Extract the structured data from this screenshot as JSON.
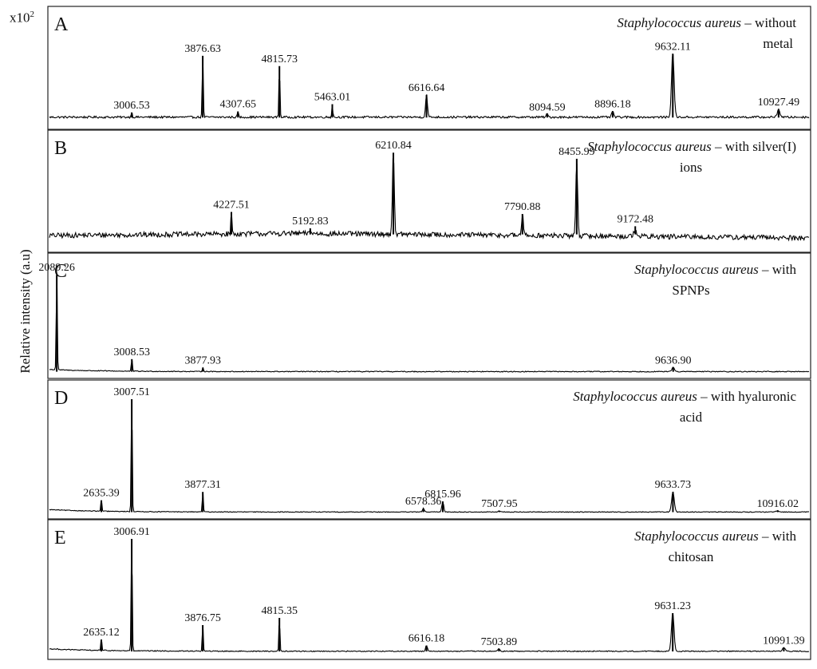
{
  "figure": {
    "ylabel": "Relative intensity (a.u)",
    "multiplier_base": "x10",
    "multiplier_exp": "2"
  },
  "chart_data": [
    {
      "type": "line",
      "panel": "A",
      "species": "Staphylococcus aureus",
      "condition_line1": " – without",
      "condition_line2": "metal",
      "xlim": [
        2000,
        11300
      ],
      "ylim": [
        0,
        1
      ],
      "base": 0.06,
      "noise": 0.02,
      "peaks": [
        {
          "mz": 3006.53,
          "h": 0.05,
          "label": "3006.53"
        },
        {
          "mz": 3876.63,
          "h": 0.6,
          "label": "3876.63"
        },
        {
          "mz": 4307.65,
          "h": 0.06,
          "label": "4307.65"
        },
        {
          "mz": 4815.73,
          "h": 0.5,
          "label": "4815.73"
        },
        {
          "mz": 5463.01,
          "h": 0.13,
          "label": "5463.01"
        },
        {
          "mz": 6616.64,
          "h": 0.22,
          "label": "6616.64"
        },
        {
          "mz": 8094.59,
          "h": 0.03,
          "label": "8094.59"
        },
        {
          "mz": 8896.18,
          "h": 0.06,
          "label": "8896.18"
        },
        {
          "mz": 9632.11,
          "h": 0.62,
          "label": "9632.11"
        },
        {
          "mz": 10927.49,
          "h": 0.08,
          "label": "10927.49"
        }
      ]
    },
    {
      "type": "line",
      "panel": "B",
      "species": "Staphylococcus aureus",
      "condition_line1": " – with silver(I)",
      "condition_line2": "ions",
      "xlim": [
        2000,
        11300
      ],
      "ylim": [
        0,
        1
      ],
      "base": 0.12,
      "noise": 0.05,
      "peaks": [
        {
          "mz": 4227.51,
          "h": 0.22,
          "label": "4227.51"
        },
        {
          "mz": 5192.83,
          "h": 0.06,
          "label": "5192.83"
        },
        {
          "mz": 6210.84,
          "h": 0.8,
          "label": "6210.84"
        },
        {
          "mz": 7790.88,
          "h": 0.2,
          "label": "7790.88"
        },
        {
          "mz": 8455.99,
          "h": 0.74,
          "label": "8455.99"
        },
        {
          "mz": 9172.48,
          "h": 0.08,
          "label": "9172.48"
        }
      ]
    },
    {
      "type": "line",
      "panel": "C",
      "species": "Staphylococcus aureus",
      "condition_line1": " – with",
      "condition_line2": "SPNPs",
      "xlim": [
        2000,
        11300
      ],
      "ylim": [
        0,
        1
      ],
      "base": 0.01,
      "noise": 0.008,
      "peaks": [
        {
          "mz": 2089.26,
          "h": 0.92,
          "label": "2089.26"
        },
        {
          "mz": 3008.53,
          "h": 0.12,
          "label": "3008.53"
        },
        {
          "mz": 3877.93,
          "h": 0.04,
          "label": "3877.93"
        },
        {
          "mz": 9636.9,
          "h": 0.04,
          "label": "9636.90"
        }
      ]
    },
    {
      "type": "line",
      "panel": "D",
      "species": "Staphylococcus aureus",
      "condition_line1": " – with hyaluronic",
      "condition_line2": "acid",
      "xlim": [
        2000,
        11300
      ],
      "ylim": [
        0,
        1
      ],
      "base": 0.01,
      "noise": 0.006,
      "peaks": [
        {
          "mz": 2635.39,
          "h": 0.1,
          "label": "2635.39"
        },
        {
          "mz": 3007.51,
          "h": 0.95,
          "label": "3007.51"
        },
        {
          "mz": 3877.31,
          "h": 0.17,
          "label": "3877.31"
        },
        {
          "mz": 6815.96,
          "h": 0.09,
          "label": "6815.96"
        },
        {
          "mz": 6578.36,
          "h": 0.03,
          "label": "6578.36"
        },
        {
          "mz": 7507.95,
          "h": 0.01,
          "label": "7507.95"
        },
        {
          "mz": 9633.73,
          "h": 0.17,
          "label": "9633.73"
        },
        {
          "mz": 10916.02,
          "h": 0.01,
          "label": "10916.02"
        }
      ]
    },
    {
      "type": "line",
      "panel": "E",
      "species": "Staphylococcus aureus",
      "condition_line1": " – with",
      "condition_line2": "chitosan",
      "xlim": [
        2000,
        11300
      ],
      "ylim": [
        0,
        1
      ],
      "base": 0.02,
      "noise": 0.008,
      "peaks": [
        {
          "mz": 2635.12,
          "h": 0.1,
          "label": "2635.12"
        },
        {
          "mz": 3006.91,
          "h": 0.94,
          "label": "3006.91"
        },
        {
          "mz": 3876.75,
          "h": 0.22,
          "label": "3876.75"
        },
        {
          "mz": 4815.35,
          "h": 0.28,
          "label": "4815.35"
        },
        {
          "mz": 6616.18,
          "h": 0.05,
          "label": "6616.18"
        },
        {
          "mz": 7503.89,
          "h": 0.02,
          "label": "7503.89"
        },
        {
          "mz": 9631.23,
          "h": 0.32,
          "label": "9631.23"
        },
        {
          "mz": 10991.39,
          "h": 0.03,
          "label": "10991.39"
        }
      ]
    }
  ]
}
